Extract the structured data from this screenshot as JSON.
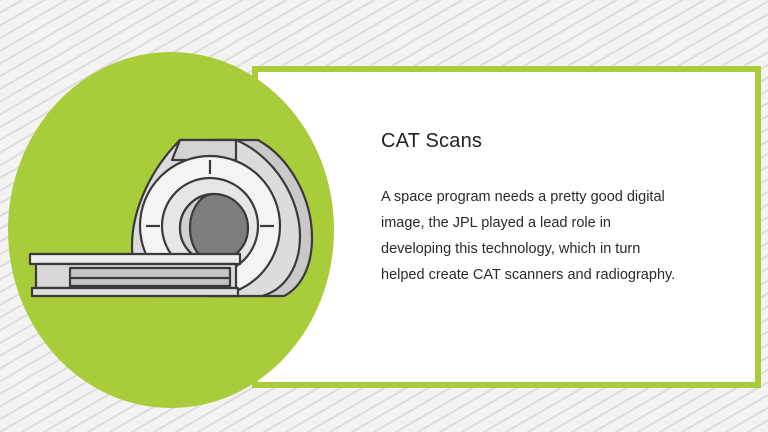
{
  "card": {
    "title": "CAT Scans",
    "lines": [
      "A space program needs a pretty good digital",
      "image, the JPL played a lead role in",
      "developing this technology, which in turn",
      "helped create CAT scanners and radiography."
    ]
  },
  "illustration": {
    "icon": "ct-scanner-icon"
  },
  "colors": {
    "accent": "#a9cc3a",
    "background": "#f1f1f1",
    "stripe": "#dddddd",
    "text": "#222222",
    "outline": "#3a3a3a"
  }
}
